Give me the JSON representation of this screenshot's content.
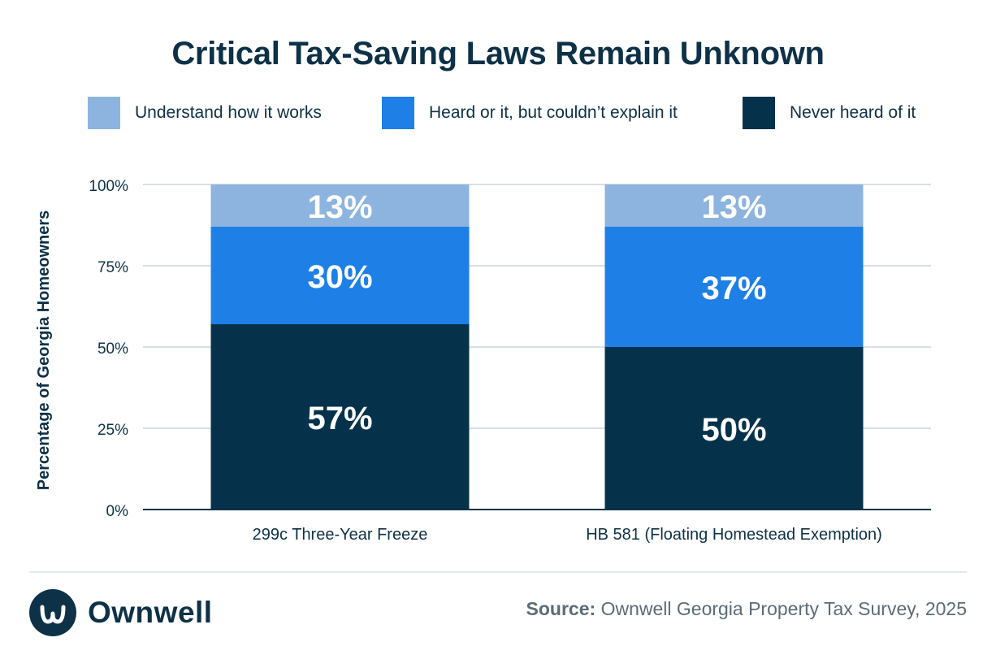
{
  "chart_data": {
    "type": "bar",
    "stacked": true,
    "title": "Critical Tax-Saving Laws Remain Unknown",
    "ylabel": "Percentage of Georgia Homeowners",
    "xlabel": "",
    "ylim": [
      0,
      100
    ],
    "yticks": [
      0,
      25,
      50,
      75,
      100
    ],
    "ytick_labels": [
      "0%",
      "25%",
      "50%",
      "75%",
      "100%"
    ],
    "grid": true,
    "legend_position": "top",
    "categories": [
      "299c Three-Year Freeze",
      "HB 581 (Floating Homestead Exemption)"
    ],
    "series": [
      {
        "name": "Never heard of it",
        "values": [
          57,
          50
        ],
        "labels": [
          "57%",
          "50%"
        ],
        "color": "#05324a"
      },
      {
        "name": "Heard or it, but couldn’t explain it",
        "values": [
          30,
          37
        ],
        "labels": [
          "30%",
          "37%"
        ],
        "color": "#1e7fe6"
      },
      {
        "name": "Understand how it works",
        "values": [
          13,
          13
        ],
        "labels": [
          "13%",
          "13%"
        ],
        "color": "#8db4de"
      }
    ]
  },
  "legend": [
    {
      "label": "Understand how it works",
      "color": "#8db4de"
    },
    {
      "label": "Heard or it, but couldn’t explain it",
      "color": "#1e7fe6"
    },
    {
      "label": "Never heard of it",
      "color": "#05324a"
    }
  ],
  "footer": {
    "brand": "Ownwell",
    "brand_color": "#0d3147",
    "source_label": "Source:",
    "source_text": "Ownwell Georgia Property Tax Survey, 2025"
  }
}
